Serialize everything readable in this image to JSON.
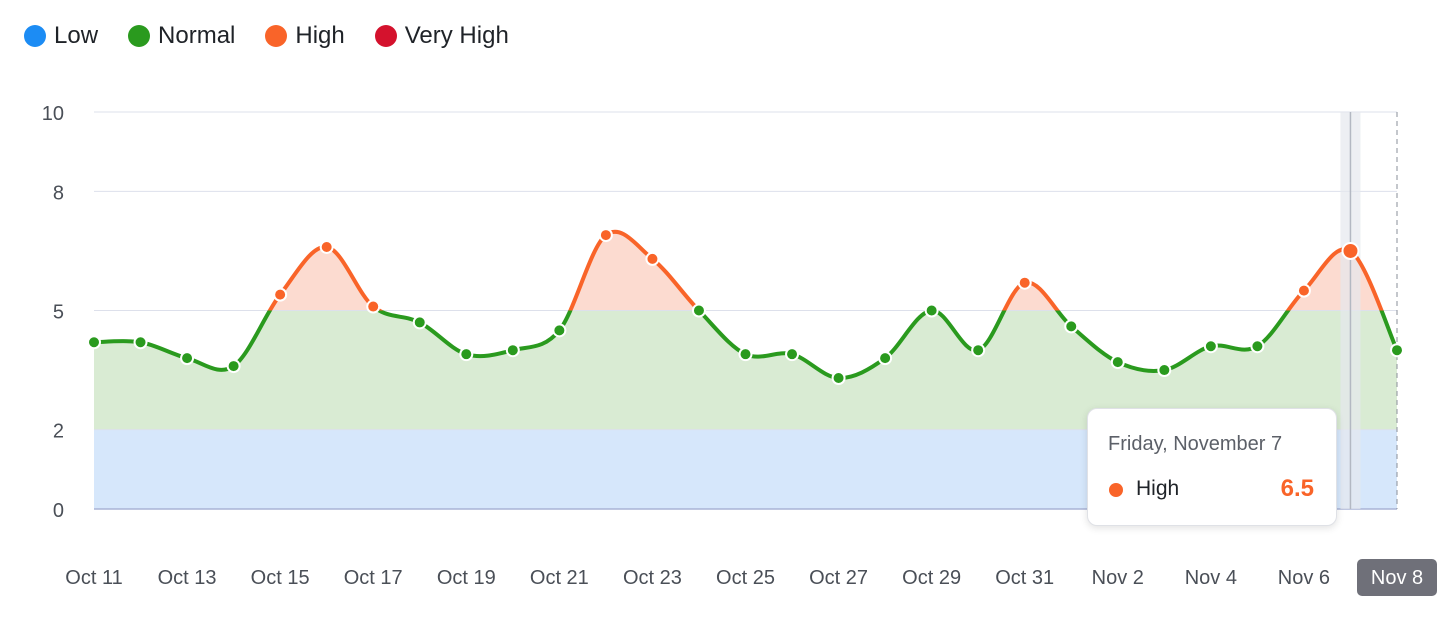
{
  "legend": [
    {
      "label": "Low",
      "color": "#1c8cf4"
    },
    {
      "label": "Normal",
      "color": "#2a9a1e"
    },
    {
      "label": "High",
      "color": "#f96429"
    },
    {
      "label": "Very High",
      "color": "#d4122d"
    }
  ],
  "tooltip": {
    "date": "Friday, November 7",
    "series_label": "High",
    "value": "6.5",
    "color": "#f96429"
  },
  "chart_data": {
    "type": "line",
    "x_tick_labels": [
      "Oct 11",
      "Oct 13",
      "Oct 15",
      "Oct 17",
      "Oct 19",
      "Oct 21",
      "Oct 23",
      "Oct 25",
      "Oct 27",
      "Oct 29",
      "Oct 31",
      "Nov 2",
      "Nov 4",
      "Nov 6",
      "Nov 8"
    ],
    "highlighted_tick": "Nov 8",
    "x": [
      "Oct 11",
      "Oct 12",
      "Oct 13",
      "Oct 14",
      "Oct 15",
      "Oct 16",
      "Oct 17",
      "Oct 18",
      "Oct 19",
      "Oct 20",
      "Oct 21",
      "Oct 22",
      "Oct 23",
      "Oct 24",
      "Oct 25",
      "Oct 26",
      "Oct 27",
      "Oct 28",
      "Oct 29",
      "Oct 30",
      "Oct 31",
      "Nov 1",
      "Nov 2",
      "Nov 3",
      "Nov 4",
      "Nov 5",
      "Nov 6",
      "Nov 7",
      "Nov 8"
    ],
    "values": [
      4.2,
      4.2,
      3.8,
      3.6,
      5.4,
      6.6,
      5.1,
      4.7,
      3.9,
      4.0,
      4.5,
      6.9,
      6.3,
      5.0,
      3.9,
      3.9,
      3.3,
      3.8,
      5.0,
      4.0,
      5.7,
      4.6,
      3.7,
      3.5,
      4.1,
      4.1,
      5.5,
      6.5,
      4.0
    ],
    "y_ticks": [
      0,
      2,
      5,
      8,
      10
    ],
    "ylim": [
      0,
      10
    ],
    "bands": [
      {
        "name": "Low",
        "from": 0,
        "to": 2,
        "color": "#d6e7fb"
      },
      {
        "name": "Normal",
        "from": 2,
        "to": 5,
        "color": "#d9ebd3"
      },
      {
        "name": "High",
        "from": 5,
        "to": 10,
        "color": "#fcdbd0"
      }
    ],
    "thresholds": {
      "normal_color": "#2a9a1e",
      "high_color": "#f96429",
      "high_above": 5
    },
    "hover_index": 27,
    "grid": true
  }
}
